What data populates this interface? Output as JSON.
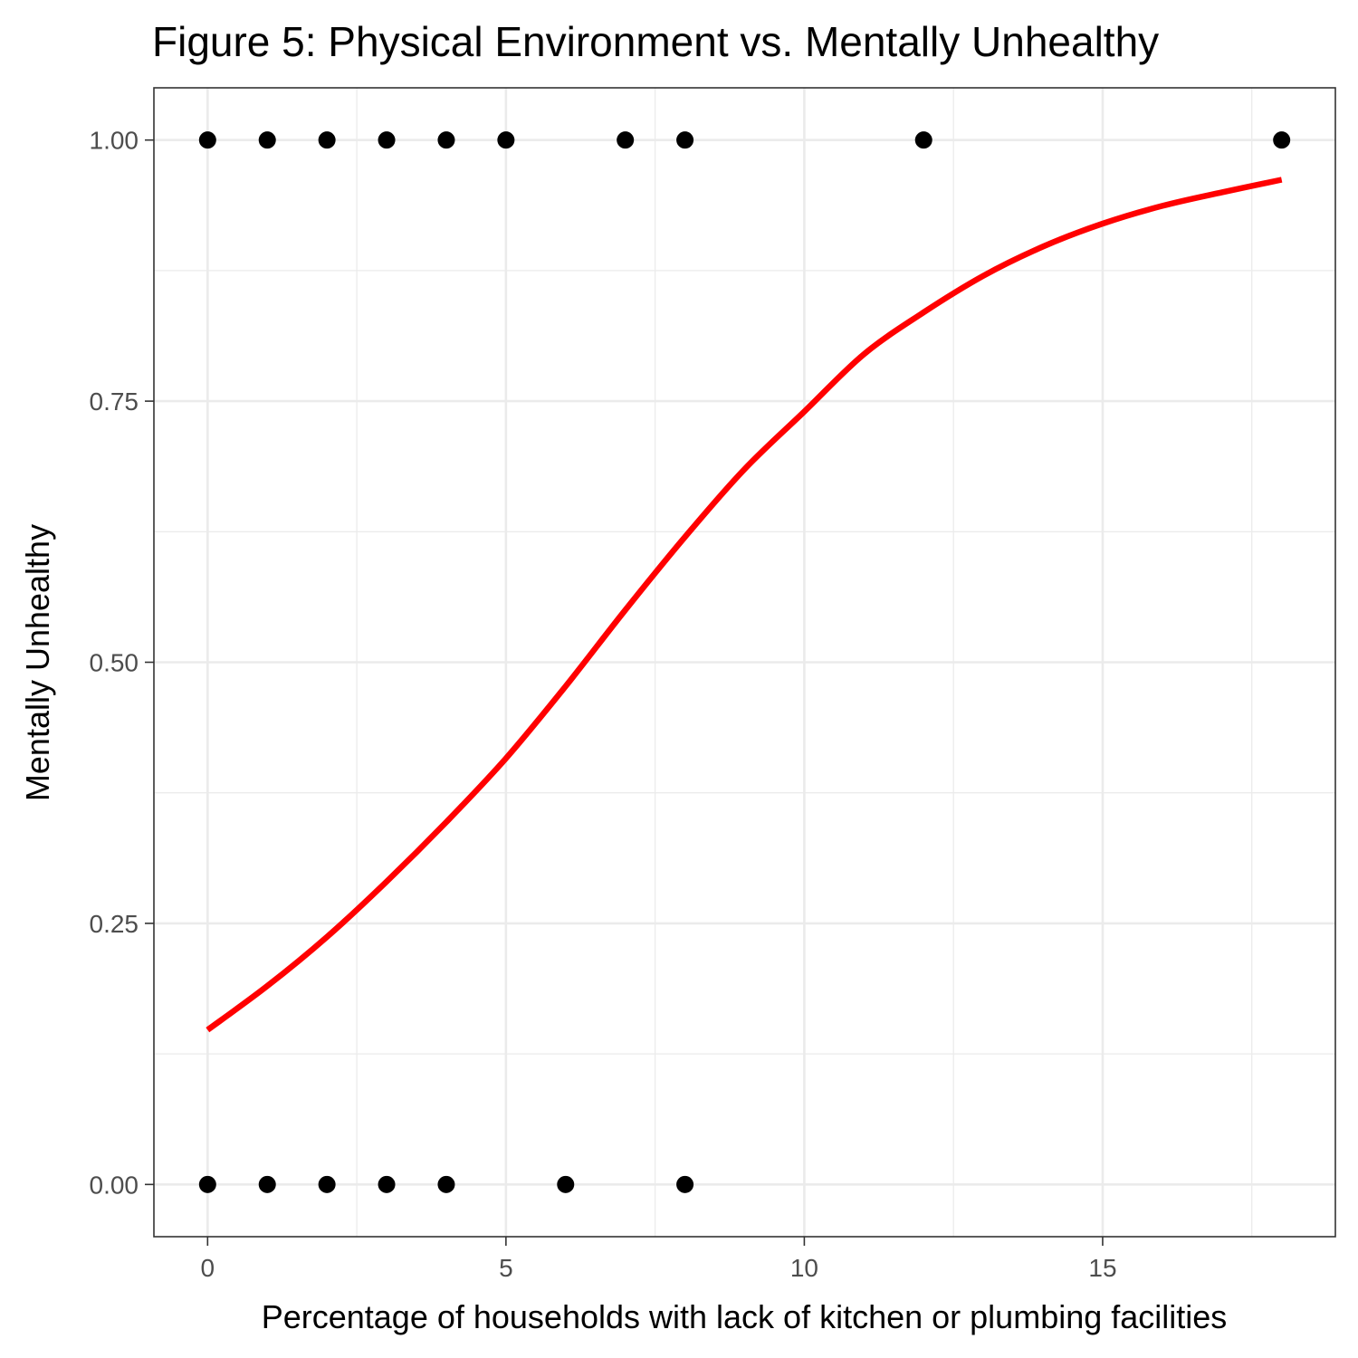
{
  "chart_data": {
    "type": "scatter",
    "title": "Figure 5: Physical Environment vs. Mentally Unhealthy",
    "xlabel": "Percentage of households with lack of kitchen or plumbing facilities",
    "ylabel": "Mentally Unhealthy",
    "xlim": [
      -0.9,
      18.9
    ],
    "ylim": [
      -0.05,
      1.05
    ],
    "x_ticks": [
      0,
      5,
      10,
      15
    ],
    "x_tick_labels": [
      "0",
      "5",
      "10",
      "15"
    ],
    "y_ticks": [
      0,
      0.25,
      0.5,
      0.75,
      1
    ],
    "y_tick_labels": [
      "0.00",
      "0.25",
      "0.50",
      "0.75",
      "1.00"
    ],
    "grid": true,
    "theme": "bw",
    "points": {
      "color": "#000000",
      "x": [
        0,
        1,
        2,
        3,
        4,
        5,
        7,
        8,
        12,
        18,
        0,
        1,
        2,
        3,
        4,
        6,
        8
      ],
      "y": [
        1,
        1,
        1,
        1,
        1,
        1,
        1,
        1,
        1,
        1,
        0,
        0,
        0,
        0,
        0,
        0,
        0
      ]
    },
    "fit_curve": {
      "type": "logistic",
      "color": "#ff0000",
      "x": [
        0,
        1,
        2,
        3,
        4,
        5,
        6,
        7,
        8,
        9,
        10,
        11,
        12,
        13,
        14,
        15,
        16,
        17,
        18
      ],
      "y": [
        0.148,
        0.19,
        0.237,
        0.29,
        0.347,
        0.408,
        0.477,
        0.55,
        0.62,
        0.685,
        0.74,
        0.795,
        0.835,
        0.87,
        0.898,
        0.92,
        0.937,
        0.95,
        0.962
      ]
    }
  }
}
